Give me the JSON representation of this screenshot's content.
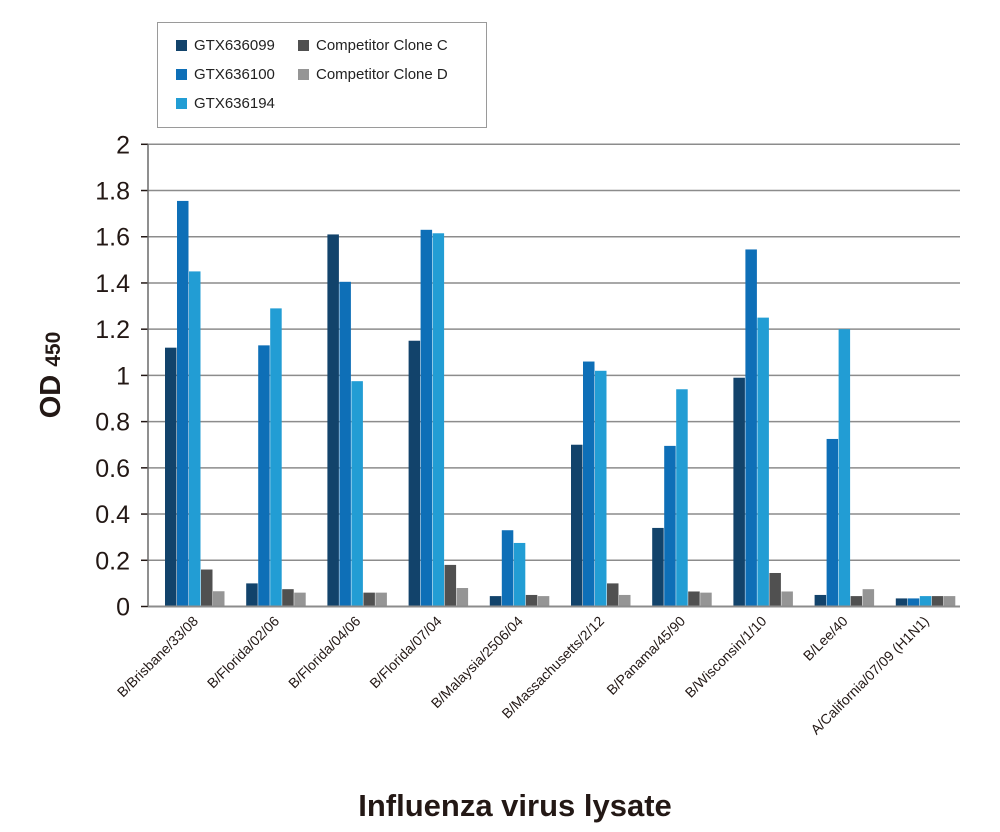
{
  "chart_data": {
    "type": "bar",
    "title": "",
    "xlabel": "Influenza virus lysate",
    "ylabel": {
      "main": "OD",
      "sub": "450"
    },
    "ylim": [
      0,
      2
    ],
    "yticks": [
      "0",
      "0.2",
      "0.4",
      "0.6",
      "0.8",
      "1",
      "1.2",
      "1.4",
      "1.6",
      "1.8",
      "2"
    ],
    "grid": true,
    "legend_position": "top-left",
    "categories": [
      "B/Brisbane/33/08",
      "B/Florida/02/06",
      "B/Florida/04/06",
      "B/Florida/07/04",
      "B/Malaysia/2506/04",
      "B/Massachusetts/2/12",
      "B/Panama/45/90",
      "B/Wisconsin/1/10",
      "B/Lee/40",
      "A/California/07/09 (H1N1)"
    ],
    "series": [
      {
        "name": "GTX636099",
        "color": "#12436b",
        "values": [
          1.12,
          0.1,
          1.61,
          1.15,
          0.045,
          0.7,
          0.34,
          0.99,
          0.05,
          0.035
        ]
      },
      {
        "name": "GTX636100",
        "color": "#0e6fb7",
        "values": [
          1.755,
          1.13,
          1.405,
          1.63,
          0.33,
          1.06,
          0.695,
          1.545,
          0.725,
          0.035
        ]
      },
      {
        "name": "GTX636194",
        "color": "#229dd4",
        "values": [
          1.45,
          1.29,
          0.975,
          1.615,
          0.275,
          1.02,
          0.94,
          1.25,
          1.2,
          0.045
        ]
      },
      {
        "name": "Competitor Clone C",
        "color": "#505050",
        "values": [
          0.16,
          0.075,
          0.06,
          0.18,
          0.05,
          0.1,
          0.065,
          0.145,
          0.045,
          0.045
        ]
      },
      {
        "name": "Competitor Clone D",
        "color": "#959595",
        "values": [
          0.066,
          0.06,
          0.06,
          0.08,
          0.045,
          0.05,
          0.06,
          0.065,
          0.075,
          0.045
        ]
      }
    ]
  }
}
